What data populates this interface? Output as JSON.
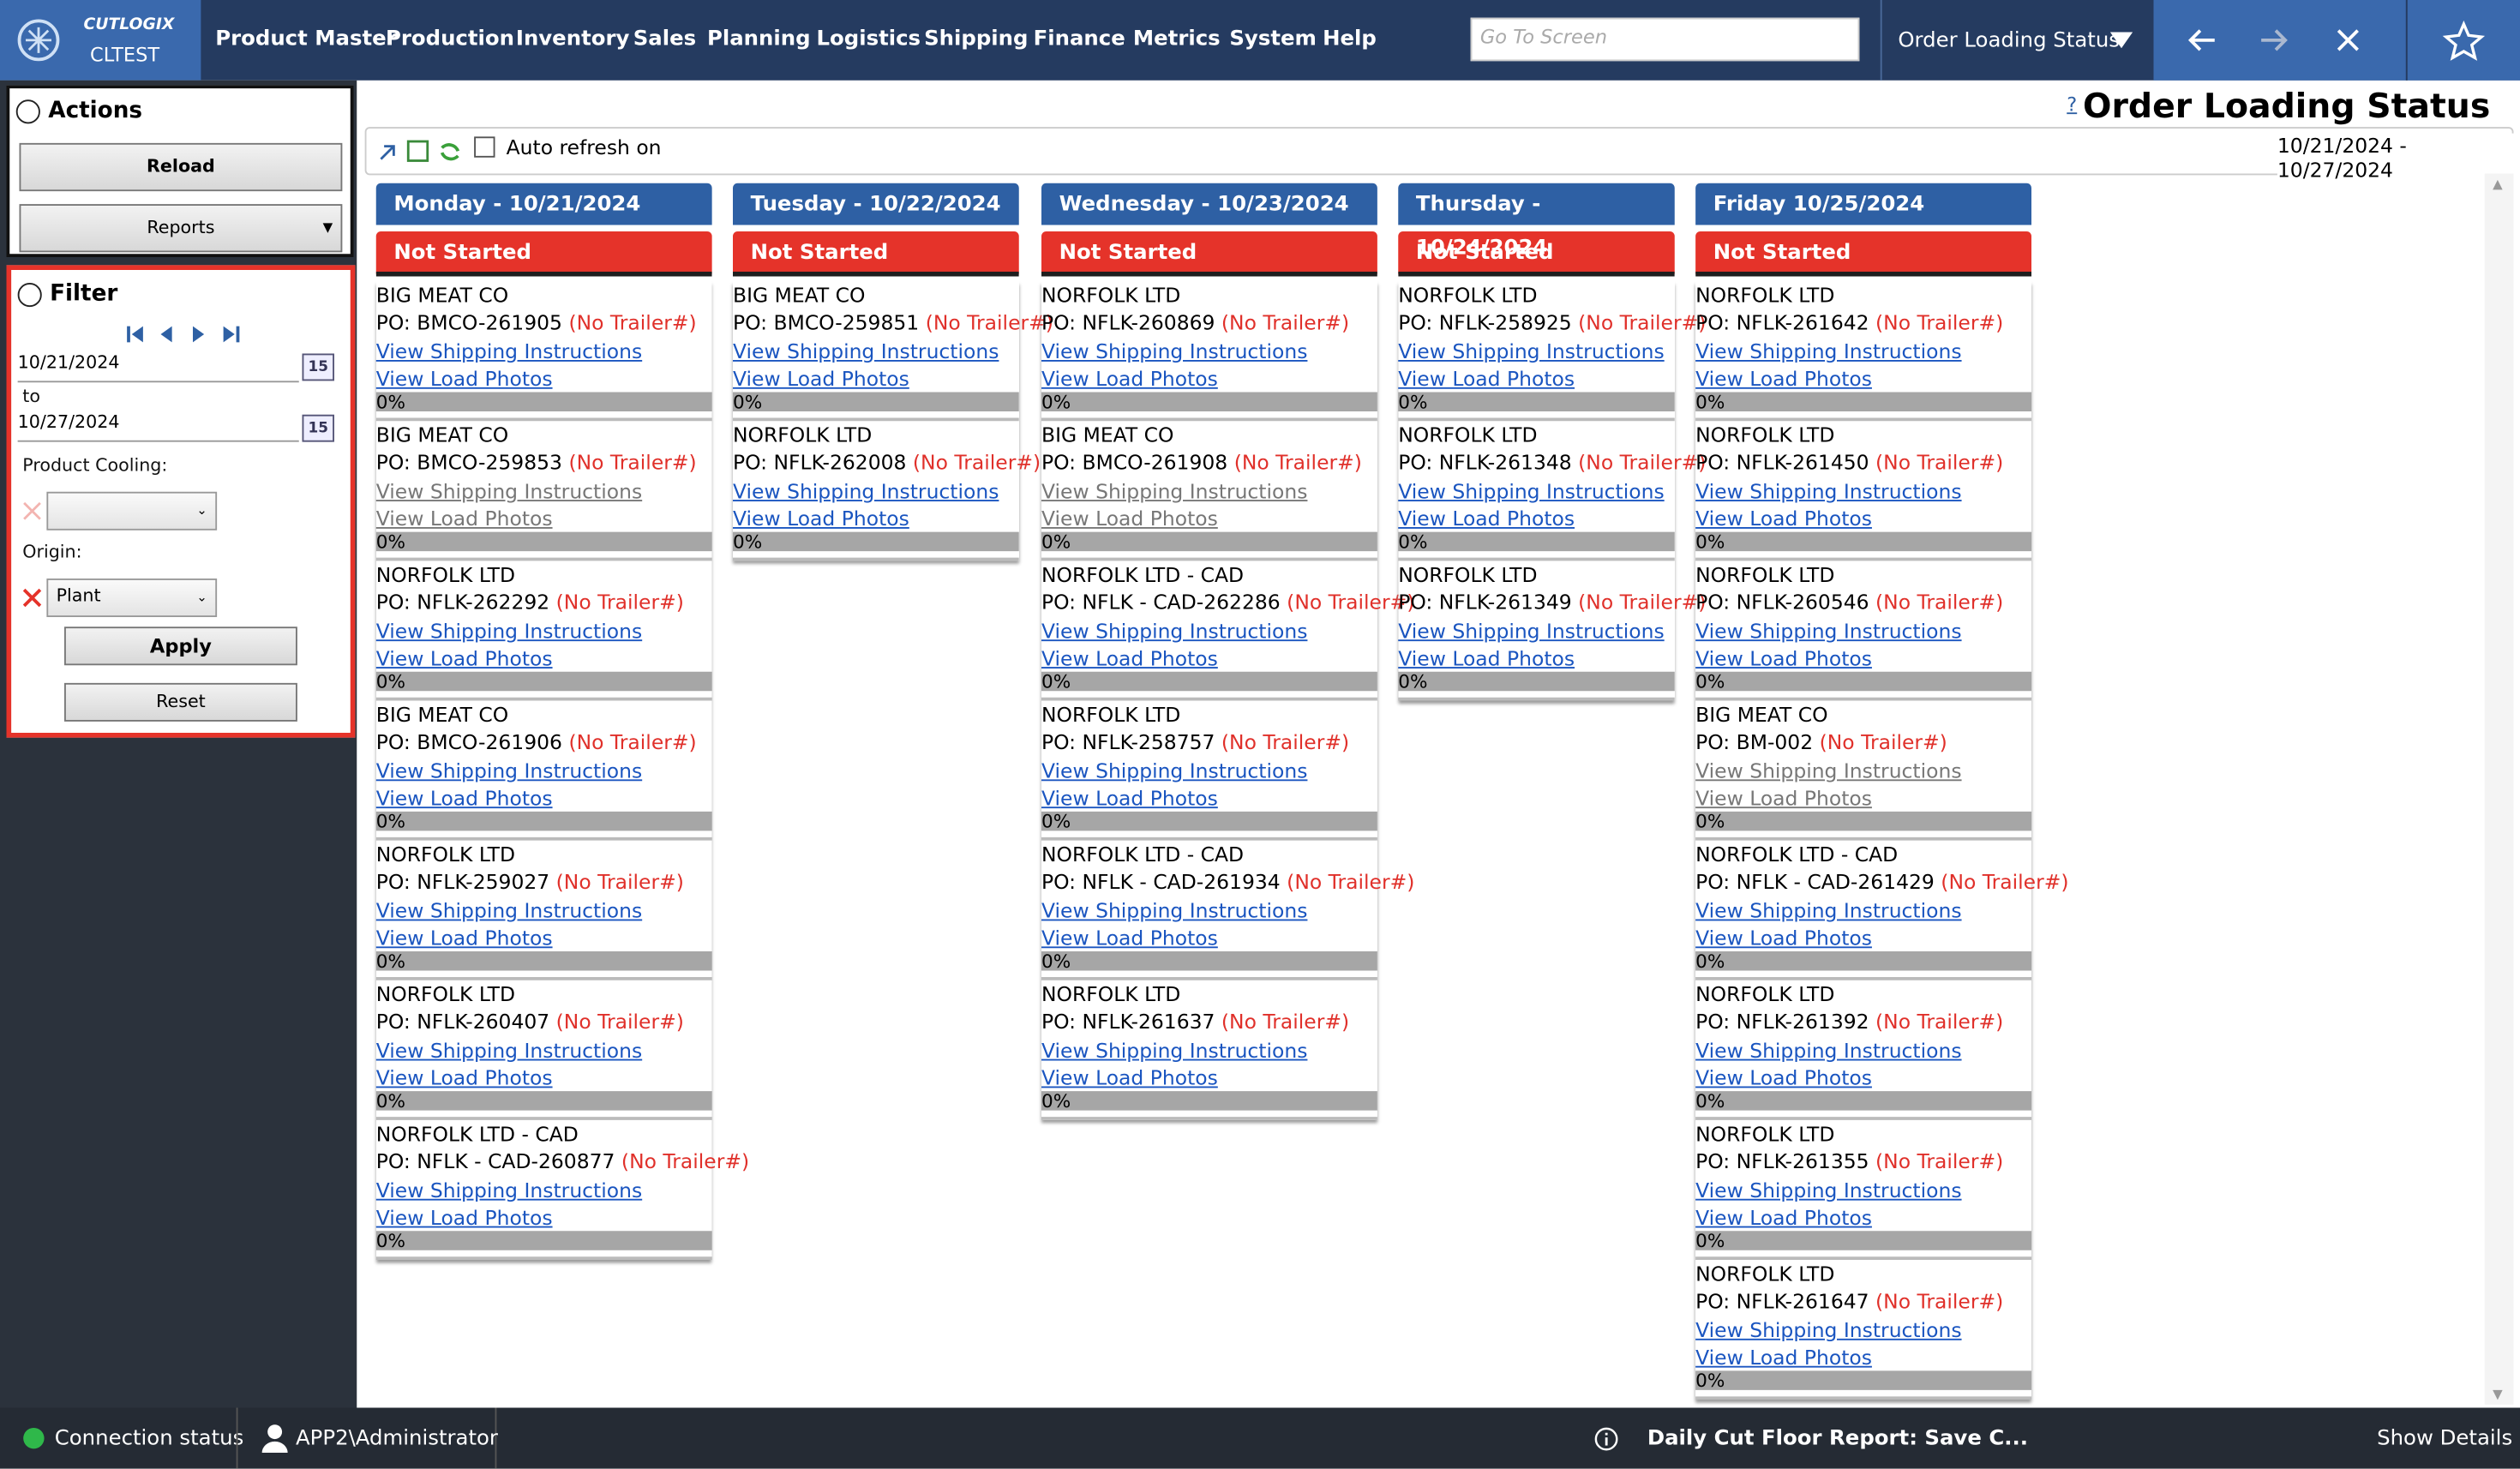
{
  "nav": {
    "brand": "CUTLOGIX",
    "environment": "CLTEST",
    "menu": [
      "Product Master",
      "Production",
      "Inventory",
      "Sales",
      "Planning",
      "Logistics",
      "Shipping",
      "Finance",
      "Metrics",
      "System",
      "Help"
    ],
    "search_placeholder": "Go To Screen",
    "current_screen": "Order Loading Status"
  },
  "actions": {
    "title": "Actions",
    "reload": "Reload",
    "reports": "Reports"
  },
  "filter": {
    "title": "Filter",
    "start_date": "10/21/2024",
    "to": "to",
    "end_date": "10/27/2024",
    "calendar_icon": "15",
    "product_cooling_label": "Product Cooling:",
    "origin_label": "Origin:",
    "origin_value": "Plant",
    "apply": "Apply",
    "reset": "Reset"
  },
  "page": {
    "title": "Order Loading Status",
    "help": "?",
    "date_range": "10/21/2024 - 10/27/2024",
    "auto_refresh": "Auto refresh on"
  },
  "columns": [
    {
      "day": "Monday - 10/21/2024",
      "status": "Not Started",
      "orders": [
        {
          "customer": "BIG MEAT CO",
          "po": "PO: BMCO-261905",
          "trailer": "(No Trailer#)",
          "shipping": "View Shipping Instructions",
          "photos": "View Load Photos",
          "progress": "0%",
          "links_enabled": true
        },
        {
          "customer": "BIG MEAT CO",
          "po": "PO: BMCO-259853",
          "trailer": "(No Trailer#)",
          "shipping": "View Shipping Instructions",
          "photos": "View Load Photos",
          "progress": "0%",
          "links_enabled": false
        },
        {
          "customer": "NORFOLK LTD",
          "po": "PO: NFLK-262292",
          "trailer": "(No Trailer#)",
          "shipping": "View Shipping Instructions",
          "photos": "View Load Photos",
          "progress": "0%",
          "links_enabled": true
        },
        {
          "customer": "BIG MEAT CO",
          "po": "PO: BMCO-261906",
          "trailer": "(No Trailer#)",
          "shipping": "View Shipping Instructions",
          "photos": "View Load Photos",
          "progress": "0%",
          "links_enabled": true
        },
        {
          "customer": "NORFOLK LTD",
          "po": "PO: NFLK-259027",
          "trailer": "(No Trailer#)",
          "shipping": "View Shipping Instructions",
          "photos": "View Load Photos",
          "progress": "0%",
          "links_enabled": true
        },
        {
          "customer": "NORFOLK LTD",
          "po": "PO: NFLK-260407",
          "trailer": "(No Trailer#)",
          "shipping": "View Shipping Instructions",
          "photos": "View Load Photos",
          "progress": "0%",
          "links_enabled": true
        },
        {
          "customer": "NORFOLK LTD - CAD",
          "po": "PO: NFLK - CAD-260877",
          "trailer": "(No Trailer#)",
          "shipping": "View Shipping Instructions",
          "photos": "View Load Photos",
          "progress": "0%",
          "links_enabled": true
        }
      ]
    },
    {
      "day": "Tuesday - 10/22/2024",
      "status": "Not Started",
      "orders": [
        {
          "customer": "BIG MEAT CO",
          "po": "PO: BMCO-259851",
          "trailer": "(No Trailer#)",
          "shipping": "View Shipping Instructions",
          "photos": "View Load Photos",
          "progress": "0%",
          "links_enabled": true
        },
        {
          "customer": "NORFOLK LTD",
          "po": "PO: NFLK-262008",
          "trailer": "(No Trailer#)",
          "shipping": "View Shipping Instructions",
          "photos": "View Load Photos",
          "progress": "0%",
          "links_enabled": true
        }
      ]
    },
    {
      "day": "Wednesday - 10/23/2024",
      "status": "Not Started",
      "orders": [
        {
          "customer": "NORFOLK LTD",
          "po": "PO: NFLK-260869",
          "trailer": "(No Trailer#)",
          "shipping": "View Shipping Instructions",
          "photos": "View Load Photos",
          "progress": "0%",
          "links_enabled": true
        },
        {
          "customer": "BIG MEAT CO",
          "po": "PO: BMCO-261908",
          "trailer": "(No Trailer#)",
          "shipping": "View Shipping Instructions",
          "photos": "View Load Photos",
          "progress": "0%",
          "links_enabled": false
        },
        {
          "customer": "NORFOLK LTD - CAD",
          "po": "PO: NFLK - CAD-262286",
          "trailer": "(No Trailer#)",
          "shipping": "View Shipping Instructions",
          "photos": "View Load Photos",
          "progress": "0%",
          "links_enabled": true
        },
        {
          "customer": "NORFOLK LTD",
          "po": "PO: NFLK-258757",
          "trailer": "(No Trailer#)",
          "shipping": "View Shipping Instructions",
          "photos": "View Load Photos",
          "progress": "0%",
          "links_enabled": true
        },
        {
          "customer": "NORFOLK LTD - CAD",
          "po": "PO: NFLK - CAD-261934",
          "trailer": "(No Trailer#)",
          "shipping": "View Shipping Instructions",
          "photos": "View Load Photos",
          "progress": "0%",
          "links_enabled": true
        },
        {
          "customer": "NORFOLK LTD",
          "po": "PO: NFLK-261637",
          "trailer": "(No Trailer#)",
          "shipping": "View Shipping Instructions",
          "photos": "View Load Photos",
          "progress": "0%",
          "links_enabled": true
        }
      ]
    },
    {
      "day": "Thursday - 10/24/2024",
      "status": "Not Started",
      "orders": [
        {
          "customer": "NORFOLK LTD",
          "po": "PO: NFLK-258925",
          "trailer": "(No Trailer#)",
          "shipping": "View Shipping Instructions",
          "photos": "View Load Photos",
          "progress": "0%",
          "links_enabled": true
        },
        {
          "customer": "NORFOLK LTD",
          "po": "PO: NFLK-261348",
          "trailer": "(No Trailer#)",
          "shipping": "View Shipping Instructions",
          "photos": "View Load Photos",
          "progress": "0%",
          "links_enabled": true
        },
        {
          "customer": "NORFOLK LTD",
          "po": "PO: NFLK-261349",
          "trailer": "(No Trailer#)",
          "shipping": "View Shipping Instructions",
          "photos": "View Load Photos",
          "progress": "0%",
          "links_enabled": true
        }
      ]
    },
    {
      "day": "Friday 10/25/2024",
      "status": "Not Started",
      "orders": [
        {
          "customer": "NORFOLK LTD",
          "po": "PO: NFLK-261642",
          "trailer": "(No Trailer#)",
          "shipping": "View Shipping Instructions",
          "photos": "View Load Photos",
          "progress": "0%",
          "links_enabled": true
        },
        {
          "customer": "NORFOLK LTD",
          "po": "PO: NFLK-261450",
          "trailer": "(No Trailer#)",
          "shipping": "View Shipping Instructions",
          "photos": "View Load Photos",
          "progress": "0%",
          "links_enabled": true
        },
        {
          "customer": "NORFOLK LTD",
          "po": "PO: NFLK-260546",
          "trailer": "(No Trailer#)",
          "shipping": "View Shipping Instructions",
          "photos": "View Load Photos",
          "progress": "0%",
          "links_enabled": true
        },
        {
          "customer": "BIG MEAT CO",
          "po": "PO: BM-002",
          "trailer": "(No Trailer#)",
          "shipping": "View Shipping Instructions",
          "photos": "View Load Photos",
          "progress": "0%",
          "links_enabled": false
        },
        {
          "customer": "NORFOLK LTD - CAD",
          "po": "PO: NFLK - CAD-261429",
          "trailer": "(No Trailer#)",
          "shipping": "View Shipping Instructions",
          "photos": "View Load Photos",
          "progress": "0%",
          "links_enabled": true
        },
        {
          "customer": "NORFOLK LTD",
          "po": "PO: NFLK-261392",
          "trailer": "(No Trailer#)",
          "shipping": "View Shipping Instructions",
          "photos": "View Load Photos",
          "progress": "0%",
          "links_enabled": true
        },
        {
          "customer": "NORFOLK LTD",
          "po": "PO: NFLK-261355",
          "trailer": "(No Trailer#)",
          "shipping": "View Shipping Instructions",
          "photos": "View Load Photos",
          "progress": "0%",
          "links_enabled": true
        },
        {
          "customer": "NORFOLK LTD",
          "po": "PO: NFLK-261647",
          "trailer": "(No Trailer#)",
          "shipping": "View Shipping Instructions",
          "photos": "View Load Photos",
          "progress": "0%",
          "links_enabled": true
        }
      ]
    }
  ],
  "status_bar": {
    "connection": "Connection status",
    "user": "APP2\\Administrator",
    "notification": "Daily Cut Floor Report: Save C...",
    "show_details": "Show Details"
  }
}
